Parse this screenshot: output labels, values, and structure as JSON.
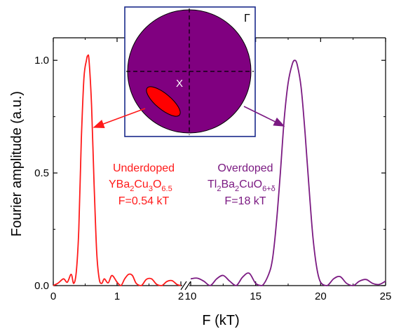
{
  "chart_data": {
    "type": "line",
    "title": "",
    "xlabel": "F (kT)",
    "ylabel": "Fourier amplitude (a.u.)",
    "ylim": [
      0,
      1.1
    ],
    "grid": false,
    "x_axis": {
      "broken": true,
      "left_segment": {
        "xlim": [
          0,
          2.0
        ],
        "ticks": [
          "0",
          "1",
          "2"
        ],
        "tick_values": [
          0,
          1,
          2
        ]
      },
      "right_segment": {
        "xlim": [
          10,
          25
        ],
        "ticks": [
          "10",
          "15",
          "20",
          "25"
        ],
        "tick_values": [
          10,
          15,
          20,
          25
        ]
      }
    },
    "y_ticks": [
      "0.0",
      "0.5",
      "1.0"
    ],
    "y_tick_values": [
      0,
      0.5,
      1.0
    ],
    "series": [
      {
        "color": "#ff1a1a",
        "segment": "left",
        "x": [
          0,
          0.08,
          0.16,
          0.22,
          0.28,
          0.32,
          0.36,
          0.4,
          0.44,
          0.48,
          0.52,
          0.54,
          0.56,
          0.6,
          0.64,
          0.68,
          0.72,
          0.76,
          0.8,
          0.86,
          0.92,
          1.0,
          1.06,
          1.12,
          1.18,
          1.24,
          1.3,
          1.38,
          1.46,
          1.54,
          1.62,
          1.7,
          1.78,
          1.86,
          1.94,
          2.0
        ],
        "y": [
          0.0,
          0.012,
          0.03,
          0.015,
          0.05,
          0.01,
          0.06,
          0.25,
          0.65,
          0.92,
          1.0,
          1.02,
          1.0,
          0.8,
          0.45,
          0.15,
          0.03,
          0.01,
          0.03,
          0.012,
          0.045,
          0.015,
          0.0,
          0.03,
          0.05,
          0.045,
          0.01,
          0.0,
          0.028,
          0.03,
          0.006,
          0.0,
          0.018,
          0.022,
          0.005,
          0.0
        ]
      },
      {
        "color": "#7b1a82",
        "segment": "right",
        "x": [
          10,
          10.5,
          11,
          11.5,
          12,
          12.5,
          13,
          13.5,
          14,
          14.5,
          15,
          15.5,
          16,
          16.3,
          16.6,
          16.9,
          17.2,
          17.5,
          17.8,
          18.0,
          18.2,
          18.5,
          18.8,
          19.1,
          19.4,
          19.7,
          20,
          20.5,
          21,
          21.5,
          22,
          22.5,
          23,
          23.5,
          24,
          24.5,
          25
        ],
        "y": [
          0.03,
          0.033,
          0.02,
          0.0,
          0.03,
          0.045,
          0.02,
          0.0,
          0.038,
          0.055,
          0.01,
          0.0,
          0.05,
          0.12,
          0.28,
          0.5,
          0.74,
          0.9,
          0.98,
          1.0,
          0.98,
          0.88,
          0.68,
          0.44,
          0.22,
          0.08,
          0.015,
          0.0,
          0.03,
          0.04,
          0.01,
          0.0,
          0.02,
          0.027,
          0.01,
          0.005,
          0.02
        ]
      }
    ],
    "annotations": {
      "underdoped": {
        "line1": "Underdoped",
        "formula_main": "YBa",
        "sub1": "2",
        "mid1": "Cu",
        "sub2": "3",
        "mid2": "O",
        "sub3": "6.5",
        "freq": "F=0.54 kT",
        "color": "#ff1a1a"
      },
      "overdoped": {
        "line1": "Overdoped",
        "formula_main": "Tl",
        "sub1": "2",
        "mid1": "Ba",
        "sub2": "2",
        "mid2": "CuO",
        "sub3": "6+δ",
        "freq": "F=18 kT",
        "color": "#7b1a82"
      }
    },
    "inset": {
      "labels": {
        "gamma": "Γ",
        "x_point": "X"
      },
      "circle_color": "#800080",
      "pocket_color": "#ff0000",
      "frame_color": "#1a2a8a"
    }
  }
}
